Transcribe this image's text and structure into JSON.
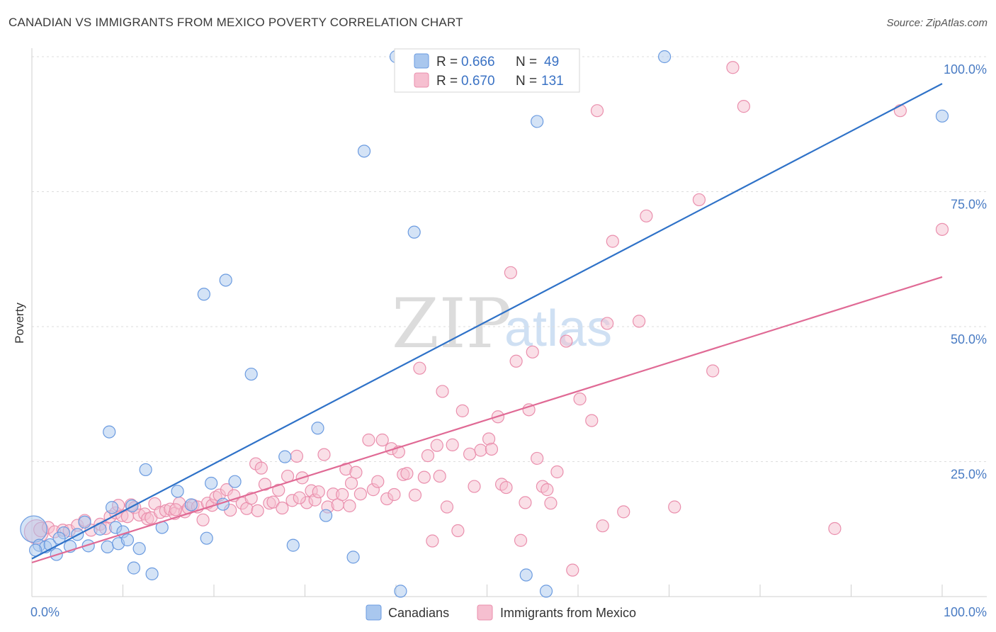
{
  "header": {
    "title": "CANADIAN VS IMMIGRANTS FROM MEXICO POVERTY CORRELATION CHART",
    "source": "Source: ZipAtlas.com"
  },
  "watermark": {
    "zip": "ZIP",
    "atlas": "atlas"
  },
  "colors": {
    "canadians_fill": "#a9c7ee",
    "canadians_stroke": "#6b9be0",
    "canadians_line": "#2f72c8",
    "mexico_fill": "#f6bfd0",
    "mexico_stroke": "#ea8fad",
    "mexico_line": "#e06a95",
    "tick_text": "#4a7cc4",
    "grid": "#dddddd"
  },
  "legend": {
    "rows": [
      {
        "r_label": "R =",
        "r_value": "0.666",
        "n_label": "N =",
        "n_value": "49"
      },
      {
        "r_label": "R =",
        "r_value": "0.670",
        "n_label": "N =",
        "n_value": "131"
      }
    ]
  },
  "chart_data": {
    "type": "scatter",
    "title": "CANADIAN VS IMMIGRANTS FROM MEXICO POVERTY CORRELATION CHART",
    "xlabel": "",
    "ylabel": "Poverty",
    "xlim": [
      0,
      100
    ],
    "ylim": [
      0,
      100
    ],
    "x_tick_labels": [
      "0.0%",
      "100.0%"
    ],
    "y_ticks": [
      {
        "value": 25,
        "label": "25.0%"
      },
      {
        "value": 50,
        "label": "50.0%"
      },
      {
        "value": 75,
        "label": "75.0%"
      },
      {
        "value": 100,
        "label": "100.0%"
      }
    ],
    "legend_position": "bottom",
    "series": [
      {
        "name": "Canadians",
        "r": 0.666,
        "n": 49,
        "trend": {
          "x0": 0,
          "y0": 7,
          "x1": 100,
          "y1": 95
        },
        "points": [
          [
            0.2,
            12.5,
            2.2
          ],
          [
            0.8,
            9.5,
            1
          ],
          [
            1.5,
            9.2,
            1
          ],
          [
            2,
            9.6,
            1
          ],
          [
            2.7,
            7.8,
            1
          ],
          [
            3.5,
            11.8,
            1
          ],
          [
            4.2,
            9.3,
            1
          ],
          [
            5,
            11.5,
            1
          ],
          [
            5.8,
            13.8,
            1
          ],
          [
            6.2,
            9.4,
            1
          ],
          [
            7.5,
            12.5,
            1
          ],
          [
            8.3,
            9.2,
            1
          ],
          [
            8.5,
            30.5,
            1
          ],
          [
            8.8,
            16.5,
            1
          ],
          [
            9.2,
            12.8,
            1
          ],
          [
            9.5,
            9.8,
            1
          ],
          [
            10,
            12,
            1
          ],
          [
            10.5,
            10.5,
            1
          ],
          [
            11,
            16.8,
            1
          ],
          [
            11.2,
            5.3,
            1
          ],
          [
            11.8,
            8.9,
            1
          ],
          [
            12.5,
            23.5,
            1
          ],
          [
            13.2,
            4.2,
            1
          ],
          [
            14.3,
            12.8,
            1
          ],
          [
            16,
            19.5,
            1
          ],
          [
            17.5,
            17,
            1
          ],
          [
            18.9,
            56,
            1
          ],
          [
            19.2,
            10.8,
            1
          ],
          [
            19.7,
            21,
            1
          ],
          [
            21,
            17.1,
            1
          ],
          [
            21.3,
            58.6,
            1
          ],
          [
            22.3,
            21.3,
            1
          ],
          [
            24.1,
            41.2,
            1
          ],
          [
            27.8,
            25.9,
            1
          ],
          [
            28.7,
            9.5,
            1
          ],
          [
            31.4,
            31.2,
            1
          ],
          [
            32.3,
            15,
            1
          ],
          [
            35.3,
            7.3,
            1
          ],
          [
            36.5,
            82.5,
            1
          ],
          [
            40,
            100,
            1
          ],
          [
            40.5,
            1,
            1
          ],
          [
            42,
            67.5,
            1
          ],
          [
            54.3,
            4,
            1
          ],
          [
            55.5,
            88,
            1
          ],
          [
            56.5,
            1,
            1
          ],
          [
            69.5,
            100,
            1
          ],
          [
            100,
            89,
            1
          ],
          [
            0.4,
            8.6,
            1
          ],
          [
            3.0,
            10.8,
            1
          ]
        ]
      },
      {
        "name": "Immigrants from Mexico",
        "r": 0.67,
        "n": 131,
        "trend": {
          "x0": 0,
          "y0": 6.3,
          "x1": 100,
          "y1": 59.2
        },
        "points": [
          [
            0.5,
            12,
            2
          ],
          [
            1,
            12.4,
            1.2
          ],
          [
            1.8,
            12.8,
            1
          ],
          [
            2.5,
            12,
            1
          ],
          [
            3.4,
            12.3,
            1
          ],
          [
            4.1,
            12.2,
            1
          ],
          [
            5,
            13.2,
            1
          ],
          [
            5.8,
            14.1,
            1
          ],
          [
            6.5,
            12.3,
            1
          ],
          [
            7.5,
            13.4,
            1
          ],
          [
            8.1,
            12.6,
            1
          ],
          [
            8.6,
            14.8,
            1
          ],
          [
            9.2,
            15.5,
            1
          ],
          [
            9.9,
            15,
            1
          ],
          [
            10.5,
            14.8,
            1
          ],
          [
            10.9,
            17,
            1
          ],
          [
            11.3,
            16.5,
            1
          ],
          [
            11.8,
            15.1,
            1
          ],
          [
            12.4,
            15.3,
            1
          ],
          [
            12.7,
            14.4,
            1
          ],
          [
            13.1,
            14.6,
            1
          ],
          [
            13.5,
            17.2,
            1
          ],
          [
            14.1,
            15.6,
            1
          ],
          [
            14.7,
            15.9,
            1
          ],
          [
            15.2,
            16.2,
            1
          ],
          [
            15.7,
            15.4,
            1
          ],
          [
            16.2,
            17.3,
            1
          ],
          [
            16.8,
            15.7,
            1
          ],
          [
            17.2,
            16.4,
            1
          ],
          [
            17.7,
            16.9,
            1
          ],
          [
            18.2,
            16.6,
            1
          ],
          [
            18.8,
            14.2,
            1
          ],
          [
            19.3,
            17.3,
            1
          ],
          [
            19.8,
            16.9,
            1
          ],
          [
            20.2,
            18.4,
            1
          ],
          [
            20.6,
            18.8,
            1
          ],
          [
            21.4,
            19.8,
            1
          ],
          [
            21.8,
            16,
            1
          ],
          [
            22.2,
            18.7,
            1
          ],
          [
            23.1,
            17.3,
            1
          ],
          [
            23.6,
            16.3,
            1
          ],
          [
            24.1,
            18.2,
            1
          ],
          [
            24.6,
            24.6,
            1
          ],
          [
            25.2,
            23.8,
            1
          ],
          [
            25.6,
            20.8,
            1
          ],
          [
            26.1,
            17.3,
            1
          ],
          [
            26.5,
            17.5,
            1
          ],
          [
            27.1,
            19.7,
            1
          ],
          [
            27.5,
            16.4,
            1
          ],
          [
            28.1,
            22.3,
            1
          ],
          [
            28.6,
            17.8,
            1
          ],
          [
            29.1,
            26,
            1
          ],
          [
            29.7,
            22,
            1
          ],
          [
            30.2,
            17.4,
            1
          ],
          [
            30.7,
            19.6,
            1
          ],
          [
            31.1,
            17.9,
            1
          ],
          [
            31.5,
            19.4,
            1
          ],
          [
            32.1,
            26.3,
            1
          ],
          [
            32.5,
            16.6,
            1
          ],
          [
            33.1,
            19,
            1
          ],
          [
            33.6,
            17,
            1
          ],
          [
            34.1,
            18.9,
            1
          ],
          [
            34.5,
            23.6,
            1
          ],
          [
            35.1,
            21,
            1
          ],
          [
            35.6,
            23,
            1
          ],
          [
            36.1,
            19,
            1
          ],
          [
            37,
            29,
            1
          ],
          [
            37.5,
            19.8,
            1
          ],
          [
            38,
            21.3,
            1
          ],
          [
            38.5,
            29,
            1
          ],
          [
            39,
            18.1,
            1
          ],
          [
            39.5,
            27.4,
            1
          ],
          [
            40.3,
            26.8,
            1
          ],
          [
            40.8,
            22.6,
            1
          ],
          [
            41.2,
            22.8,
            1
          ],
          [
            42.1,
            18.8,
            1
          ],
          [
            42.6,
            42.3,
            1
          ],
          [
            43.1,
            22.1,
            1
          ],
          [
            43.5,
            26.1,
            1
          ],
          [
            44,
            10.3,
            1
          ],
          [
            44.5,
            28,
            1
          ],
          [
            45.1,
            38,
            1
          ],
          [
            45.6,
            16.6,
            1
          ],
          [
            46.2,
            28.1,
            1
          ],
          [
            46.8,
            12.2,
            1
          ],
          [
            47.3,
            34.4,
            1
          ],
          [
            48.1,
            26.4,
            1
          ],
          [
            48.6,
            20.4,
            1
          ],
          [
            49.3,
            27.1,
            1
          ],
          [
            50.2,
            29.2,
            1
          ],
          [
            50.5,
            27.3,
            1
          ],
          [
            51.2,
            33.3,
            1
          ],
          [
            51.6,
            20.8,
            1
          ],
          [
            52.1,
            20.2,
            1
          ],
          [
            52.6,
            60,
            1
          ],
          [
            53.2,
            43.6,
            1
          ],
          [
            53.7,
            10.4,
            1
          ],
          [
            54.2,
            17.4,
            1
          ],
          [
            54.6,
            34.6,
            1
          ],
          [
            55,
            45.3,
            1
          ],
          [
            55.5,
            25.6,
            1
          ],
          [
            56.1,
            20.4,
            1
          ],
          [
            56.6,
            19.8,
            1
          ],
          [
            57,
            17.3,
            1
          ],
          [
            57.7,
            23.1,
            1
          ],
          [
            58.7,
            47.3,
            1
          ],
          [
            59.4,
            4.9,
            1
          ],
          [
            60.2,
            36.6,
            1
          ],
          [
            61.5,
            32.6,
            1
          ],
          [
            62.1,
            90,
            1
          ],
          [
            62.7,
            13.1,
            1
          ],
          [
            63.2,
            50.6,
            1
          ],
          [
            63.8,
            65.8,
            1
          ],
          [
            65,
            15.7,
            1
          ],
          [
            66.7,
            51,
            1
          ],
          [
            67.5,
            70.5,
            1
          ],
          [
            70.6,
            16.6,
            1
          ],
          [
            73.3,
            73.5,
            1
          ],
          [
            74.8,
            41.8,
            1
          ],
          [
            77,
            98,
            1
          ],
          [
            78.2,
            90.8,
            1
          ],
          [
            88.2,
            12.6,
            1
          ],
          [
            95.4,
            90,
            1
          ],
          [
            100,
            68,
            1
          ],
          [
            15.8,
            16.1,
            1
          ],
          [
            24.8,
            15.9,
            1
          ],
          [
            29.4,
            18.3,
            1
          ],
          [
            34.9,
            16.8,
            1
          ],
          [
            39.8,
            18.9,
            1
          ],
          [
            44.8,
            22.3,
            1
          ],
          [
            9.5,
            16.9,
            1
          ]
        ]
      }
    ]
  },
  "bottom_legend": {
    "canadians_label": "Canadians",
    "mexico_label": "Immigrants from Mexico"
  }
}
